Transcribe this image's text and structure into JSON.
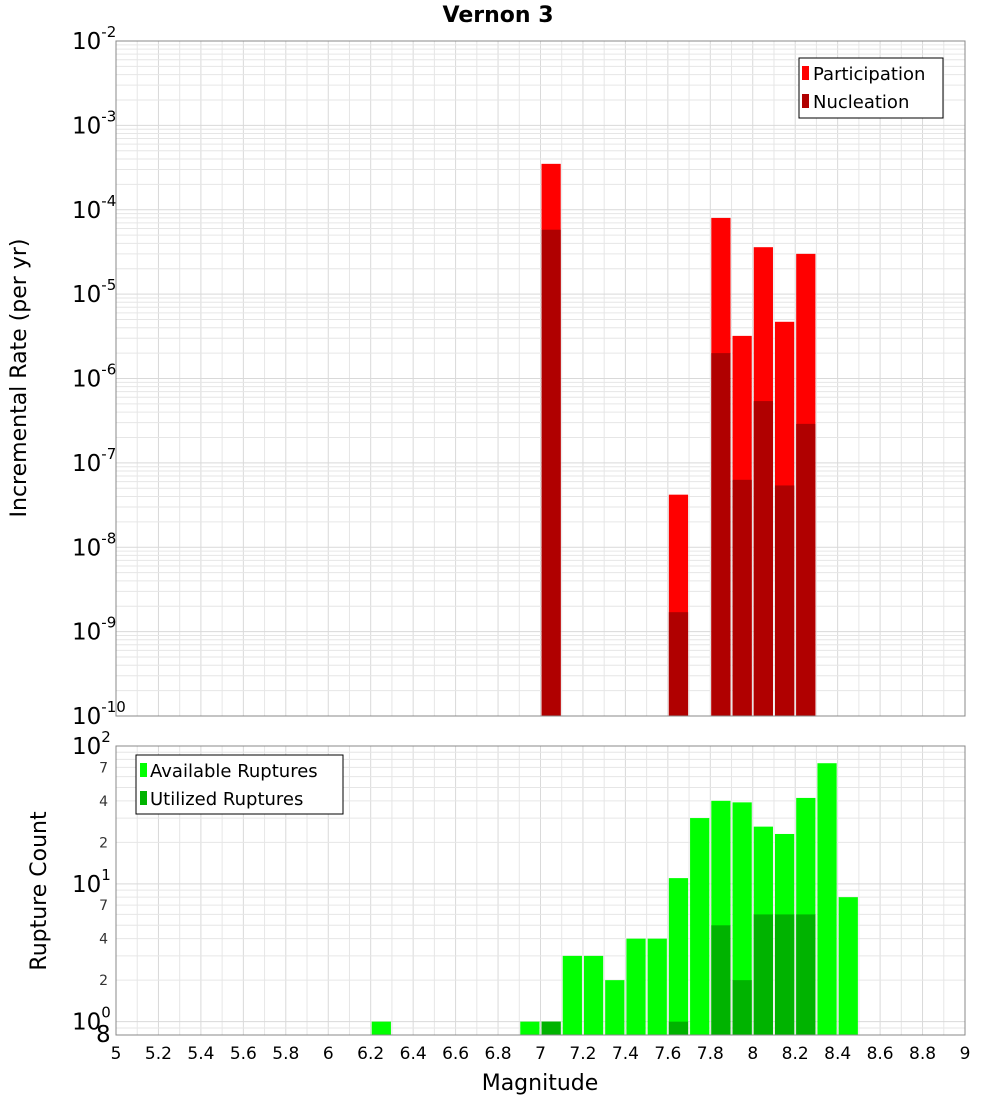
{
  "chart_data": [
    {
      "type": "bar",
      "title": "Vernon 3",
      "xlabel": "",
      "ylabel": "Incremental Rate (per yr)",
      "xlim": [
        5,
        9
      ],
      "ylim": [
        1e-10,
        0.01
      ],
      "yscale": "log",
      "grid": true,
      "legend_position": "top-right",
      "x_ticks": [
        "5",
        "5.2",
        "5.4",
        "5.6",
        "5.8",
        "6",
        "6.2",
        "6.4",
        "6.6",
        "6.8",
        "7",
        "7.2",
        "7.4",
        "7.6",
        "7.8",
        "8",
        "8.2",
        "8.4",
        "8.6",
        "8.8",
        "9"
      ],
      "y_tick_bases": [
        "10",
        "10",
        "10",
        "10",
        "10",
        "10",
        "10",
        "10",
        "10"
      ],
      "y_tick_exponents": [
        "-10",
        "-9",
        "-8",
        "-7",
        "-6",
        "-5",
        "-4",
        "-3",
        "-2"
      ],
      "series": [
        {
          "name": "Participation",
          "color": "#ff0000",
          "points": [
            {
              "x": 7.05,
              "y": 0.00035
            },
            {
              "x": 7.65,
              "y": 4.2e-08
            },
            {
              "x": 7.85,
              "y": 8e-05
            },
            {
              "x": 7.95,
              "y": 3.2e-06
            },
            {
              "x": 8.05,
              "y": 3.6e-05
            },
            {
              "x": 8.15,
              "y": 4.7e-06
            },
            {
              "x": 8.25,
              "y": 3e-05
            }
          ]
        },
        {
          "name": "Nucleation",
          "color": "#b00000",
          "points": [
            {
              "x": 7.05,
              "y": 5.8e-05
            },
            {
              "x": 7.65,
              "y": 1.7e-09
            },
            {
              "x": 7.85,
              "y": 2e-06
            },
            {
              "x": 7.95,
              "y": 6.3e-08
            },
            {
              "x": 8.05,
              "y": 5.4e-07
            },
            {
              "x": 8.15,
              "y": 5.4e-08
            },
            {
              "x": 8.25,
              "y": 2.9e-07
            }
          ]
        }
      ]
    },
    {
      "type": "bar",
      "title": "",
      "xlabel": "Magnitude",
      "ylabel": "Rupture Count",
      "xlim": [
        5,
        9
      ],
      "ylim": [
        0.8,
        100
      ],
      "yscale": "log",
      "grid": true,
      "legend_position": "top-left",
      "x_ticks": [
        "5",
        "5.2",
        "5.4",
        "5.6",
        "5.8",
        "6",
        "6.2",
        "6.4",
        "6.6",
        "6.8",
        "7",
        "7.2",
        "7.4",
        "7.6",
        "7.8",
        "8",
        "8.2",
        "8.4",
        "8.6",
        "8.8",
        "9"
      ],
      "y_major_bases": [
        "10",
        "10",
        "10"
      ],
      "y_major_exponents": [
        "0",
        "1",
        "2"
      ],
      "y_minor_labels": [
        "8",
        "2",
        "4",
        "7",
        "2",
        "4",
        "7"
      ],
      "series": [
        {
          "name": "Available Ruptures",
          "color": "#00ff00",
          "points": [
            {
              "x": 6.25,
              "y": 1
            },
            {
              "x": 6.95,
              "y": 1
            },
            {
              "x": 7.05,
              "y": 1
            },
            {
              "x": 7.15,
              "y": 3
            },
            {
              "x": 7.25,
              "y": 3
            },
            {
              "x": 7.35,
              "y": 2
            },
            {
              "x": 7.45,
              "y": 4
            },
            {
              "x": 7.55,
              "y": 4
            },
            {
              "x": 7.65,
              "y": 11
            },
            {
              "x": 7.75,
              "y": 30
            },
            {
              "x": 7.85,
              "y": 40
            },
            {
              "x": 7.95,
              "y": 39
            },
            {
              "x": 8.05,
              "y": 26
            },
            {
              "x": 8.15,
              "y": 23
            },
            {
              "x": 8.25,
              "y": 42
            },
            {
              "x": 8.35,
              "y": 75
            },
            {
              "x": 8.45,
              "y": 8
            }
          ]
        },
        {
          "name": "Utilized Ruptures",
          "color": "#00b300",
          "points": [
            {
              "x": 7.05,
              "y": 1
            },
            {
              "x": 7.65,
              "y": 1
            },
            {
              "x": 7.85,
              "y": 5
            },
            {
              "x": 7.95,
              "y": 2
            },
            {
              "x": 8.05,
              "y": 6
            },
            {
              "x": 8.15,
              "y": 6
            },
            {
              "x": 8.25,
              "y": 6
            }
          ]
        }
      ]
    }
  ]
}
